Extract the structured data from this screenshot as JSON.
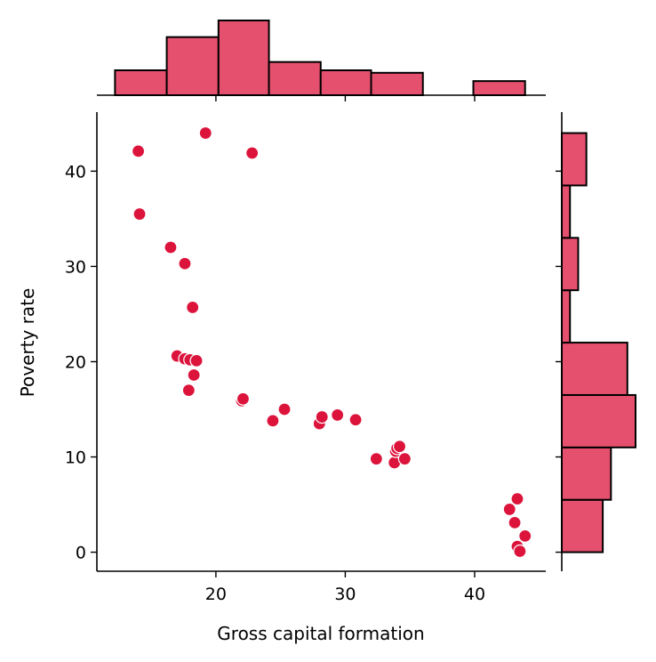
{
  "chart_data": {
    "type": "scatter",
    "title": "",
    "xlabel": "Gross capital formation",
    "ylabel": "Poverty rate",
    "xlim": [
      10.8,
      45.5
    ],
    "ylim": [
      -2.0,
      46.2
    ],
    "xticks": [
      20,
      30,
      40
    ],
    "yticks": [
      0,
      10,
      20,
      30,
      40
    ],
    "grid": false,
    "legend": "none",
    "colors": {
      "point": "#DC143C",
      "bar": "#E5506E",
      "outline": "#000000"
    },
    "points": [
      {
        "x": 14.0,
        "y": 42.1
      },
      {
        "x": 19.2,
        "y": 44.0
      },
      {
        "x": 22.8,
        "y": 41.9
      },
      {
        "x": 14.1,
        "y": 35.5
      },
      {
        "x": 16.5,
        "y": 32.0
      },
      {
        "x": 17.6,
        "y": 30.3
      },
      {
        "x": 18.2,
        "y": 25.7
      },
      {
        "x": 17.0,
        "y": 20.6
      },
      {
        "x": 17.6,
        "y": 20.3
      },
      {
        "x": 18.0,
        "y": 20.2
      },
      {
        "x": 18.5,
        "y": 20.1
      },
      {
        "x": 18.3,
        "y": 18.6
      },
      {
        "x": 17.9,
        "y": 17.0
      },
      {
        "x": 22.0,
        "y": 15.9
      },
      {
        "x": 22.1,
        "y": 16.1
      },
      {
        "x": 25.3,
        "y": 15.0
      },
      {
        "x": 24.4,
        "y": 13.8
      },
      {
        "x": 28.0,
        "y": 13.5
      },
      {
        "x": 28.2,
        "y": 14.2
      },
      {
        "x": 29.4,
        "y": 14.4
      },
      {
        "x": 30.8,
        "y": 13.9
      },
      {
        "x": 32.4,
        "y": 9.8
      },
      {
        "x": 33.8,
        "y": 9.4
      },
      {
        "x": 33.9,
        "y": 10.6
      },
      {
        "x": 34.0,
        "y": 10.9
      },
      {
        "x": 34.2,
        "y": 11.1
      },
      {
        "x": 34.6,
        "y": 9.8
      },
      {
        "x": 43.3,
        "y": 5.6
      },
      {
        "x": 42.7,
        "y": 4.5
      },
      {
        "x": 43.1,
        "y": 3.1
      },
      {
        "x": 43.9,
        "y": 1.7
      },
      {
        "x": 43.3,
        "y": 0.6
      },
      {
        "x": 43.5,
        "y": 0.1
      }
    ],
    "x_histogram": {
      "bins": [
        {
          "from": 12.2,
          "to": 16.2,
          "count": 3
        },
        {
          "from": 16.2,
          "to": 20.2,
          "count": 7
        },
        {
          "from": 20.2,
          "to": 24.1,
          "count": 9
        },
        {
          "from": 24.1,
          "to": 28.1,
          "count": 4
        },
        {
          "from": 28.1,
          "to": 32.0,
          "count": 3
        },
        {
          "from": 32.0,
          "to": 36.0,
          "count": 2.7
        },
        {
          "from": 36.0,
          "to": 39.9,
          "count": 0
        },
        {
          "from": 39.9,
          "to": 43.9,
          "count": 1.7
        }
      ]
    },
    "y_histogram": {
      "bins": [
        {
          "from": 0.0,
          "to": 5.5,
          "count": 5
        },
        {
          "from": 5.5,
          "to": 11.0,
          "count": 6
        },
        {
          "from": 11.0,
          "to": 16.5,
          "count": 9
        },
        {
          "from": 16.5,
          "to": 22.0,
          "count": 8
        },
        {
          "from": 22.0,
          "to": 27.5,
          "count": 1
        },
        {
          "from": 27.5,
          "to": 33.0,
          "count": 2
        },
        {
          "from": 33.0,
          "to": 38.5,
          "count": 1
        },
        {
          "from": 38.5,
          "to": 44.0,
          "count": 3
        }
      ]
    }
  }
}
